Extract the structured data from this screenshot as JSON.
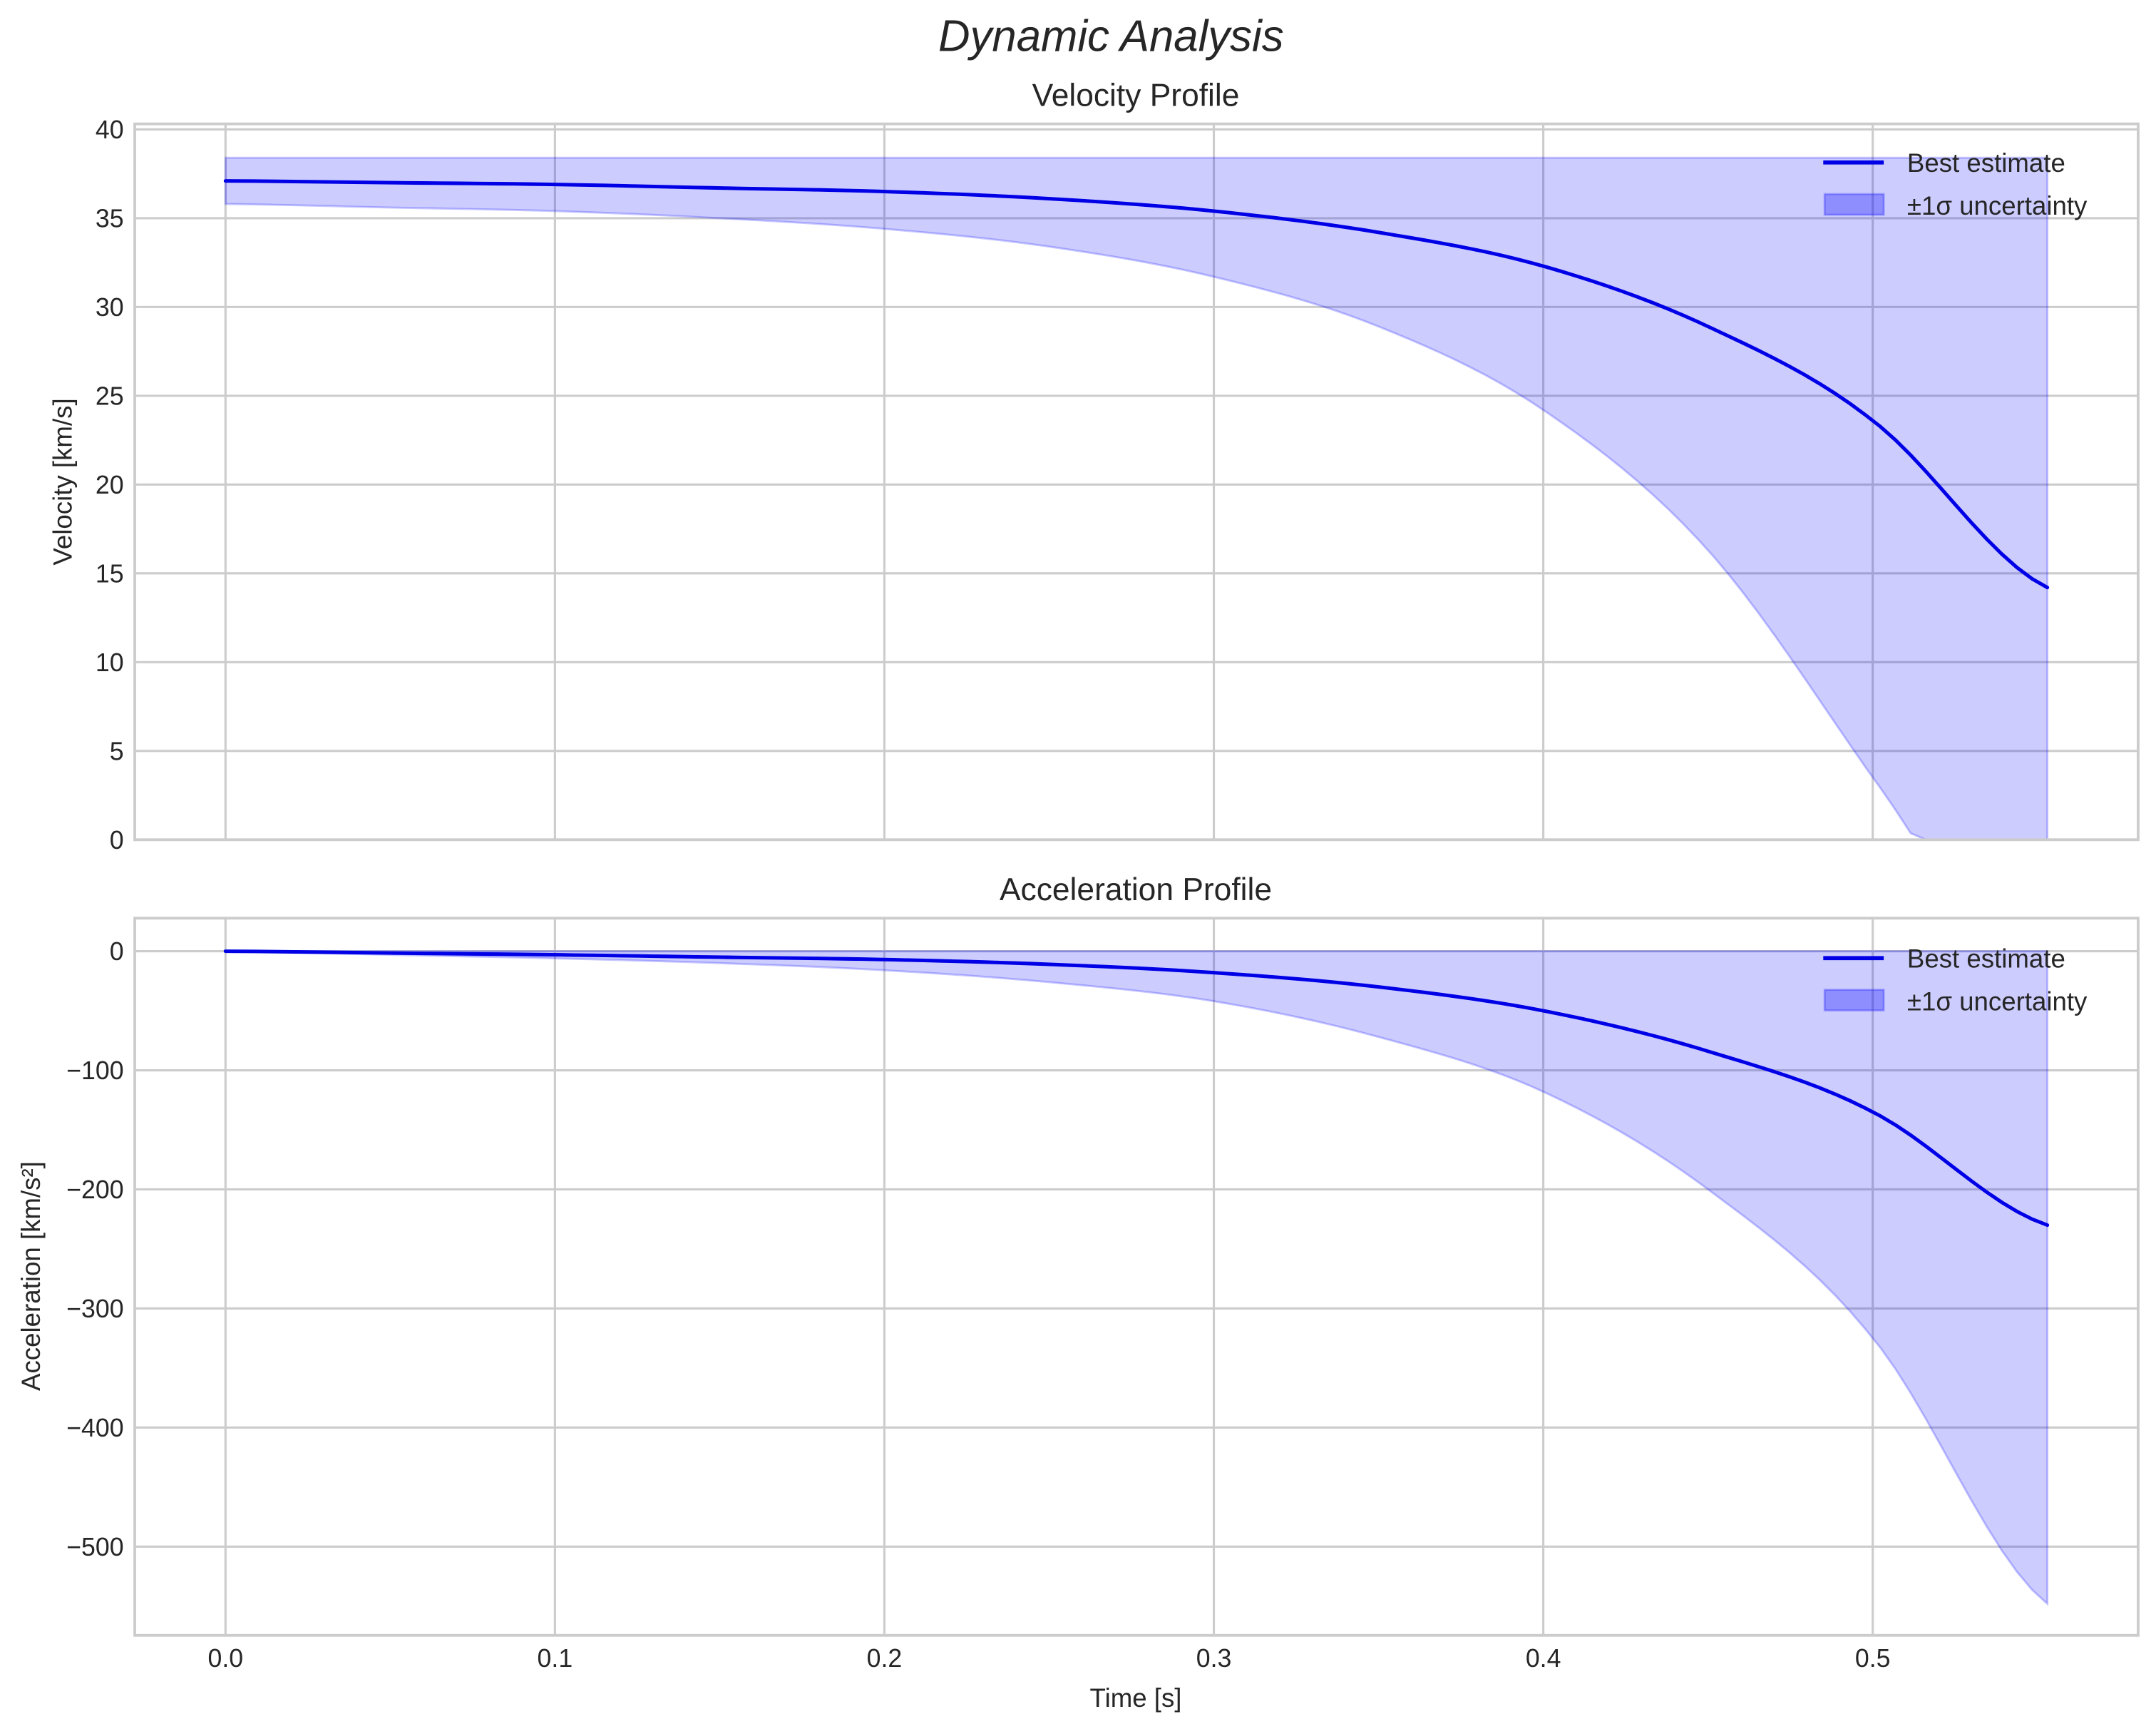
{
  "figure": {
    "suptitle": "Dynamic Analysis",
    "line_color": "#0000e6",
    "band_color": "#0000ff",
    "band_alpha": 0.2,
    "grid_color": "#cccccc",
    "text_color": "#262626"
  },
  "chart_data": [
    {
      "type": "line",
      "title": "Velocity Profile",
      "xlabel": "",
      "ylabel": "Velocity [km/s]",
      "xlim": [
        -0.028,
        0.581
      ],
      "ylim": [
        0,
        40.3
      ],
      "xticks": [
        "0.0",
        "0.1",
        "0.2",
        "0.3",
        "0.4",
        "0.5"
      ],
      "yticks": [
        "0",
        "5",
        "10",
        "15",
        "20",
        "25",
        "30",
        "35",
        "40"
      ],
      "grid": true,
      "legend": {
        "position": "upper right",
        "entries": [
          "Best estimate",
          "±1σ uncertainty"
        ]
      },
      "x": [
        0.0,
        0.05,
        0.1,
        0.15,
        0.2,
        0.25,
        0.3,
        0.35,
        0.4,
        0.45,
        0.5,
        0.553
      ],
      "series": [
        {
          "name": "Best estimate",
          "values": [
            37.1,
            37.0,
            36.9,
            36.7,
            36.5,
            36.1,
            35.4,
            34.2,
            32.3,
            28.9,
            23.6,
            14.2
          ]
        },
        {
          "name": "±1σ lower",
          "values": [
            35.8,
            35.6,
            35.4,
            35.0,
            34.4,
            33.4,
            31.7,
            28.9,
            24.2,
            16.3,
            3.5,
            -10.0
          ]
        },
        {
          "name": "±1σ upper",
          "values": [
            38.4,
            38.4,
            38.4,
            38.4,
            38.4,
            38.4,
            38.4,
            38.4,
            38.4,
            38.4,
            38.4,
            38.4
          ]
        }
      ]
    },
    {
      "type": "line",
      "title": "Acceleration Profile",
      "xlabel": "Time [s]",
      "ylabel": "Acceleration [km/s²]",
      "xlim": [
        -0.028,
        0.581
      ],
      "ylim": [
        -575,
        28
      ],
      "xticks": [
        "0.0",
        "0.1",
        "0.2",
        "0.3",
        "0.4",
        "0.5"
      ],
      "yticks": [
        "0",
        "−100",
        "−200",
        "−300",
        "−400",
        "−500"
      ],
      "grid": true,
      "legend": {
        "position": "upper right",
        "entries": [
          "Best estimate",
          "±1σ uncertainty"
        ]
      },
      "x": [
        0.0,
        0.05,
        0.1,
        0.15,
        0.2,
        0.25,
        0.3,
        0.35,
        0.4,
        0.45,
        0.5,
        0.553
      ],
      "series": [
        {
          "name": "Best estimate",
          "values": [
            0,
            -1.5,
            -3,
            -5,
            -7,
            -11,
            -18,
            -30,
            -50,
            -84,
            -135,
            -230
          ]
        },
        {
          "name": "±1σ lower",
          "values": [
            0,
            -3,
            -6,
            -10,
            -16,
            -26,
            -42,
            -72,
            -118,
            -200,
            -325,
            -548
          ]
        },
        {
          "name": "±1σ upper",
          "values": [
            0,
            0,
            0,
            0,
            0,
            0,
            0,
            0,
            0,
            0,
            0,
            0
          ]
        }
      ]
    }
  ],
  "legend_labels": {
    "line": "Best estimate",
    "band": "±1σ uncertainty"
  }
}
